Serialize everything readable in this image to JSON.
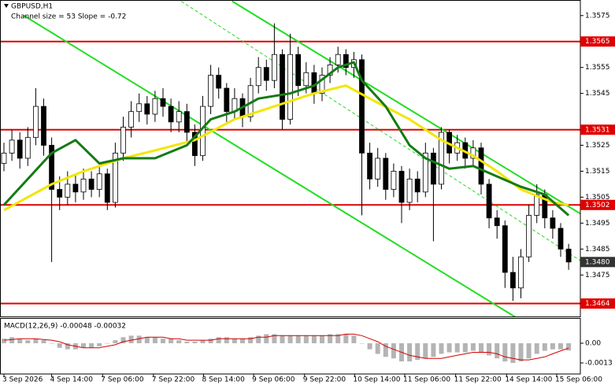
{
  "chart_data": [
    {
      "type": "candlestick",
      "title": "GBPUSD,H1",
      "subtitle": "Channel size = 53 Slope = -0.72",
      "open": [
        1.3518,
        1.3522,
        1.3527,
        1.352,
        1.3528,
        1.354,
        1.3525,
        1.3508,
        1.3505,
        1.351,
        1.3507,
        1.3512,
        1.3508,
        1.3514,
        1.3503,
        1.3522,
        1.3532,
        1.3538,
        1.3541,
        1.3537,
        1.3543,
        1.354,
        1.3534,
        1.3538,
        1.353,
        1.3521,
        1.354,
        1.3552,
        1.3547,
        1.3538,
        1.3543,
        1.3536,
        1.3548,
        1.3555,
        1.355,
        1.356,
        1.3535,
        1.356,
        1.3548,
        1.3553,
        1.3545,
        1.3552,
        1.3556,
        1.356,
        1.3555,
        1.3558,
        1.3522,
        1.3512,
        1.352,
        1.3508,
        1.3515,
        1.3503,
        1.3512,
        1.3507,
        1.3522,
        1.351,
        1.353,
        1.3522,
        1.3526,
        1.352,
        1.3524,
        1.351,
        1.3497,
        1.3494,
        1.3476,
        1.347,
        1.3482,
        1.3498,
        1.3506,
        1.3497,
        1.3493,
        1.3485
      ],
      "high": [
        1.3526,
        1.3531,
        1.353,
        1.3532,
        1.3547,
        1.3543,
        1.3528,
        1.3513,
        1.3515,
        1.3514,
        1.3516,
        1.3515,
        1.3517,
        1.3516,
        1.3526,
        1.3536,
        1.3542,
        1.3545,
        1.3544,
        1.3546,
        1.3547,
        1.3543,
        1.3542,
        1.3541,
        1.3533,
        1.3544,
        1.3556,
        1.3555,
        1.3549,
        1.3547,
        1.3545,
        1.3551,
        1.3559,
        1.3558,
        1.3572,
        1.3562,
        1.3568,
        1.3563,
        1.3557,
        1.3556,
        1.3555,
        1.3559,
        1.3563,
        1.3562,
        1.3561,
        1.356,
        1.3526,
        1.3524,
        1.3522,
        1.3518,
        1.3517,
        1.3516,
        1.3515,
        1.3526,
        1.3524,
        1.3532,
        1.3531,
        1.3529,
        1.3528,
        1.3527,
        1.3526,
        1.3512,
        1.35,
        1.3496,
        1.3482,
        1.3485,
        1.3502,
        1.351,
        1.3508,
        1.35,
        1.3495,
        1.3487
      ],
      "low": [
        1.3515,
        1.3519,
        1.3516,
        1.3517,
        1.3525,
        1.3521,
        1.348,
        1.35,
        1.3502,
        1.3503,
        1.3504,
        1.3505,
        1.3505,
        1.35,
        1.3501,
        1.3519,
        1.3528,
        1.3534,
        1.3533,
        1.3534,
        1.3536,
        1.353,
        1.353,
        1.3526,
        1.3517,
        1.3519,
        1.3537,
        1.3543,
        1.3534,
        1.3535,
        1.3532,
        1.3534,
        1.3545,
        1.3546,
        1.3547,
        1.3531,
        1.3533,
        1.3544,
        1.3545,
        1.3541,
        1.3542,
        1.3549,
        1.3553,
        1.3552,
        1.3551,
        1.3498,
        1.3508,
        1.3509,
        1.3504,
        1.3505,
        1.3495,
        1.35,
        1.3503,
        1.3505,
        1.3488,
        1.3508,
        1.3518,
        1.3519,
        1.3516,
        1.3517,
        1.3506,
        1.3493,
        1.3489,
        1.347,
        1.3465,
        1.3466,
        1.348,
        1.3495,
        1.3493,
        1.3489,
        1.3482,
        1.3477
      ],
      "close": [
        1.3522,
        1.3527,
        1.352,
        1.3528,
        1.354,
        1.3525,
        1.3508,
        1.3505,
        1.351,
        1.3507,
        1.3512,
        1.3508,
        1.3514,
        1.3503,
        1.3522,
        1.3532,
        1.3538,
        1.3541,
        1.3537,
        1.3543,
        1.354,
        1.3534,
        1.3538,
        1.353,
        1.3521,
        1.354,
        1.3552,
        1.3547,
        1.3538,
        1.3543,
        1.3536,
        1.3548,
        1.3555,
        1.355,
        1.356,
        1.3535,
        1.356,
        1.3548,
        1.3553,
        1.3545,
        1.3552,
        1.3556,
        1.356,
        1.3555,
        1.3558,
        1.3522,
        1.3512,
        1.352,
        1.3508,
        1.3515,
        1.3503,
        1.3512,
        1.3507,
        1.3522,
        1.351,
        1.353,
        1.3522,
        1.3526,
        1.352,
        1.3524,
        1.351,
        1.3497,
        1.3494,
        1.3476,
        1.347,
        1.3482,
        1.3498,
        1.3506,
        1.3497,
        1.3493,
        1.3485,
        1.348
      ],
      "series": [
        {
          "color": "#f2e600",
          "x": [
            0,
            6,
            10,
            15,
            19,
            24,
            29,
            34,
            39,
            43,
            46,
            51,
            55,
            59,
            62,
            65,
            69,
            71
          ],
          "values": [
            1.35,
            1.351,
            1.3515,
            1.352,
            1.3523,
            1.3527,
            1.3535,
            1.354,
            1.3545,
            1.3548,
            1.3543,
            1.3535,
            1.3527,
            1.3521,
            1.3515,
            1.3508,
            1.3503,
            1.3502
          ]
        },
        {
          "color": "#157a15",
          "x": [
            0,
            6,
            9,
            12,
            15,
            19,
            23,
            26,
            29,
            32,
            36,
            39,
            42,
            44,
            45,
            48,
            51,
            53,
            56,
            59,
            62,
            65,
            68,
            71
          ],
          "values": [
            1.3502,
            1.3522,
            1.3527,
            1.3518,
            1.352,
            1.352,
            1.3525,
            1.3535,
            1.3538,
            1.3543,
            1.3545,
            1.3548,
            1.3555,
            1.3557,
            1.355,
            1.354,
            1.3525,
            1.352,
            1.3516,
            1.3517,
            1.3513,
            1.3509,
            1.3506,
            1.3498
          ]
        }
      ],
      "channels": [
        {
          "color": "#22dd22",
          "style": "solid",
          "x": [
            28.7,
            72.5
          ],
          "values": [
            1.35805,
            1.34986
          ]
        },
        {
          "color": "#22dd22",
          "style": "solid",
          "x": [
            2.5,
            64.4
          ],
          "values": [
            1.3575,
            1.34586
          ]
        },
        {
          "color": "#22dd22",
          "style": "dashed",
          "x": [
            22.3,
            72.5
          ],
          "values": [
            1.35805,
            1.34805
          ]
        }
      ],
      "levels": [
        {
          "value": 1.3565,
          "color": "#e00000"
        },
        {
          "value": 1.3531,
          "color": "#e00000"
        },
        {
          "value": 1.3502,
          "color": "#e00000"
        },
        {
          "value": 1.3464,
          "color": "#e00000"
        }
      ],
      "last_price": {
        "value": 1.348,
        "label": "1.3480"
      },
      "bull_color": "#ffffff",
      "bear_color": "#000000",
      "ylim": [
        1.3459,
        1.3581
      ],
      "yticks": [
        1.3575,
        1.3555,
        1.3545,
        1.3525,
        1.3515,
        1.3505,
        1.3495,
        1.3485,
        1.3475
      ],
      "xticks": [
        {
          "value": 0,
          "label": "3 Sep 2026"
        },
        {
          "value": 6,
          "label": "4 Sep 14:00"
        },
        {
          "value": 12.4,
          "label": "7 Sep 06:00"
        },
        {
          "value": 18.8,
          "label": "7 Sep 22:00"
        },
        {
          "value": 25.1,
          "label": "8 Sep 14:00"
        },
        {
          "value": 31.4,
          "label": "9 Sep 06:00"
        },
        {
          "value": 37.8,
          "label": "9 Sep 22:00"
        },
        {
          "value": 44.1,
          "label": "10 Sep 14:00"
        },
        {
          "value": 50.4,
          "label": "11 Sep 06:00"
        },
        {
          "value": 56.8,
          "label": "11 Sep 22:00"
        },
        {
          "value": 63.2,
          "label": "14 Sep 14:00"
        },
        {
          "value": 69.5,
          "label": "15 Sep 06:00"
        }
      ]
    },
    {
      "type": "macd",
      "title": "MACD(12,26,9) -0.00048 -0.00032",
      "histogram": {
        "color": "#b4b4b4",
        "values": [
          0.0003,
          0.0004,
          0.0003,
          0.0002,
          0.0003,
          0.0002,
          0,
          -0.0003,
          -0.0004,
          -0.0004,
          -0.0003,
          -0.0003,
          -0.0002,
          0,
          0.0002,
          0.0004,
          0.0005,
          0.0005,
          0.0004,
          0.0004,
          0.0003,
          0.0003,
          0.0002,
          0.0001,
          0.0001,
          0.0002,
          0.0003,
          0.0004,
          0.0004,
          0.0003,
          0.0003,
          0.0004,
          0.0005,
          0.0006,
          0.0006,
          0.0005,
          0.0005,
          0.0005,
          0.0005,
          0.0005,
          0.0005,
          0.0006,
          0.0006,
          0.0006,
          0.0005,
          0,
          -0.0004,
          -0.0007,
          -0.0009,
          -0.001,
          -0.0012,
          -0.0012,
          -0.0011,
          -0.001,
          -0.0009,
          -0.0007,
          -0.0006,
          -0.0006,
          -0.0006,
          -0.0005,
          -0.0006,
          -0.0008,
          -0.001,
          -0.0012,
          -0.0013,
          -0.0012,
          -0.001,
          -0.0007,
          -0.0005,
          -0.0004,
          -0.0004,
          -0.00048
        ]
      },
      "signal": {
        "color": "#d40000",
        "values": [
          0.0002,
          0.00025,
          0.0003,
          0.0003,
          0.0003,
          0.00025,
          0.0002,
          0.0001,
          -0.0001,
          -0.0002,
          -0.0003,
          -0.0003,
          -0.0003,
          -0.0002,
          -0.0001,
          0.0001,
          0.0002,
          0.0003,
          0.0004,
          0.0004,
          0.0004,
          0.0003,
          0.0003,
          0.0002,
          0.0002,
          0.0002,
          0.0002,
          0.0003,
          0.0003,
          0.0003,
          0.0003,
          0.0003,
          0.0004,
          0.0004,
          0.0005,
          0.0005,
          0.0005,
          0.0005,
          0.0005,
          0.0005,
          0.0005,
          0.0005,
          0.0005,
          0.0006,
          0.0006,
          0.0005,
          0.0003,
          0.0001,
          -0.0002,
          -0.0004,
          -0.0006,
          -0.0008,
          -0.0009,
          -0.001,
          -0.001,
          -0.001,
          -0.0009,
          -0.0008,
          -0.0007,
          -0.0006,
          -0.0006,
          -0.0006,
          -0.0007,
          -0.0009,
          -0.001,
          -0.0011,
          -0.0011,
          -0.001,
          -0.0009,
          -0.0007,
          -0.0005,
          -0.00032
        ]
      },
      "ylim": [
        -0.00203,
        0.00161
      ],
      "yticks": [
        {
          "value": 0,
          "label": "0.00"
        },
        -0.0013
      ]
    }
  ]
}
